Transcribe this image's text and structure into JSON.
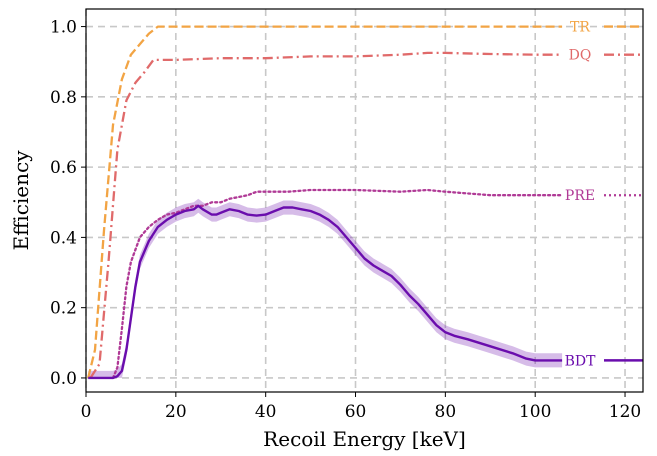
{
  "chart_data": {
    "type": "line",
    "xlabel": "Recoil Energy [keV]",
    "ylabel": "Efficiency",
    "xlim": [
      0,
      124
    ],
    "ylim": [
      -0.04,
      1.05
    ],
    "xticks": [
      0,
      20,
      40,
      60,
      80,
      100,
      120
    ],
    "yticks": [
      0.0,
      0.2,
      0.4,
      0.6,
      0.8,
      1.0
    ],
    "xtick_labels": [
      "0",
      "20",
      "40",
      "60",
      "80",
      "100",
      "120"
    ],
    "ytick_labels": [
      "0.0",
      "0.2",
      "0.4",
      "0.6",
      "0.8",
      "1.0"
    ],
    "grid": true,
    "series": [
      {
        "name": "TR",
        "color": "#f2a444",
        "style": "dashed",
        "x": [
          0.5,
          2,
          4,
          6,
          8,
          10,
          12,
          14,
          16,
          20,
          40,
          60,
          80,
          100,
          106
        ],
        "y": [
          0.0,
          0.08,
          0.42,
          0.72,
          0.85,
          0.92,
          0.95,
          0.98,
          1.0,
          1.0,
          1.0,
          1.0,
          1.0,
          1.0,
          1.0
        ]
      },
      {
        "name": "DQ",
        "color": "#e06a6a",
        "style": "dashdot",
        "x": [
          1,
          3,
          5,
          7,
          9,
          11,
          13,
          15,
          20,
          30,
          40,
          50,
          60,
          70,
          76,
          80,
          90,
          100,
          106
        ],
        "y": [
          0.0,
          0.04,
          0.33,
          0.65,
          0.79,
          0.84,
          0.87,
          0.905,
          0.905,
          0.91,
          0.91,
          0.915,
          0.915,
          0.92,
          0.925,
          0.925,
          0.922,
          0.92,
          0.92
        ]
      },
      {
        "name": "PRE",
        "color": "#b03a96",
        "style": "dotted",
        "x": [
          6,
          7,
          8,
          9,
          10,
          12,
          14,
          16,
          18,
          20,
          22,
          24,
          26,
          28,
          30,
          32,
          34,
          36,
          38,
          40,
          45,
          50,
          60,
          70,
          76,
          80,
          90,
          100,
          106
        ],
        "y": [
          0.0,
          0.03,
          0.14,
          0.26,
          0.33,
          0.4,
          0.43,
          0.45,
          0.465,
          0.47,
          0.48,
          0.49,
          0.49,
          0.5,
          0.5,
          0.51,
          0.515,
          0.52,
          0.53,
          0.53,
          0.53,
          0.535,
          0.535,
          0.53,
          0.535,
          0.53,
          0.52,
          0.52,
          0.52
        ]
      },
      {
        "name": "BDT",
        "color": "#6a0dad",
        "style": "solid",
        "x": [
          0.5,
          4,
          6,
          7,
          8,
          9,
          10,
          11,
          12,
          14,
          16,
          18,
          20,
          22,
          24,
          25,
          26,
          28,
          29,
          30,
          32,
          34,
          36,
          38,
          40,
          42,
          44,
          46,
          48,
          50,
          52,
          54,
          56,
          58,
          60,
          62,
          64,
          66,
          68,
          70,
          72,
          74,
          76,
          78,
          80,
          82,
          85,
          90,
          95,
          98,
          100,
          106
        ],
        "y": [
          0.0,
          0.0,
          0.0,
          0.005,
          0.02,
          0.08,
          0.17,
          0.26,
          0.33,
          0.39,
          0.43,
          0.45,
          0.465,
          0.475,
          0.48,
          0.49,
          0.48,
          0.465,
          0.465,
          0.47,
          0.48,
          0.475,
          0.465,
          0.462,
          0.465,
          0.475,
          0.485,
          0.485,
          0.48,
          0.475,
          0.465,
          0.45,
          0.43,
          0.4,
          0.37,
          0.34,
          0.32,
          0.305,
          0.29,
          0.265,
          0.235,
          0.21,
          0.18,
          0.15,
          0.13,
          0.12,
          0.11,
          0.09,
          0.07,
          0.055,
          0.05,
          0.05
        ],
        "band": 0.02
      }
    ]
  }
}
